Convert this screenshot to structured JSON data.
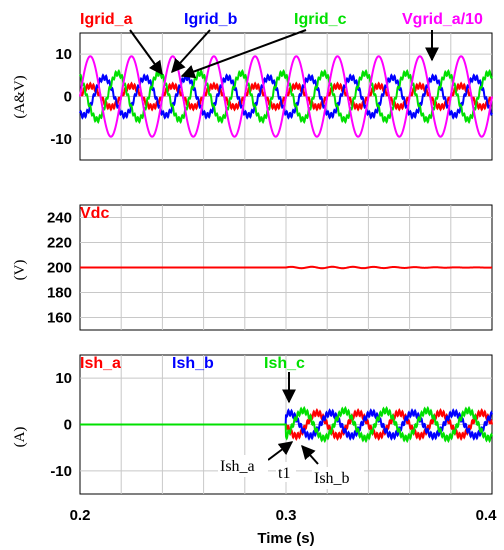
{
  "chart_data": [
    {
      "type": "line",
      "ylabel": "(A&V)",
      "xlim": [
        0.2,
        0.4
      ],
      "ylim": [
        -15,
        15
      ],
      "yticks": [
        10,
        0,
        -10
      ],
      "grid": true,
      "labels": [
        "Igrid_a",
        "Igrid_b",
        "Igrid_c",
        "Vgrid_a/10"
      ],
      "series": [
        {
          "name": "Igrid_a",
          "color": "#ff0000",
          "amplitude": 2.5,
          "frequency_hz": 50,
          "phase_deg": 0
        },
        {
          "name": "Igrid_b",
          "color": "#0000ff",
          "amplitude": 4.5,
          "frequency_hz": 50,
          "phase_deg": -120
        },
        {
          "name": "Igrid_c",
          "color": "#00e000",
          "amplitude": 5.5,
          "frequency_hz": 50,
          "phase_deg": 120
        },
        {
          "name": "Vgrid_a/10",
          "color": "#ff00ff",
          "amplitude": 9.5,
          "frequency_hz": 50,
          "phase_deg": 0
        }
      ]
    },
    {
      "type": "line",
      "ylabel": "(V)",
      "xlim": [
        0.2,
        0.4
      ],
      "ylim": [
        150,
        250
      ],
      "yticks": [
        240,
        220,
        200,
        180,
        160
      ],
      "grid": true,
      "labels": [
        "Vdc"
      ],
      "series": [
        {
          "name": "Vdc",
          "color": "#ff0000",
          "value": 200,
          "ripple_after": 0.3,
          "ripple": 0.6
        }
      ]
    },
    {
      "type": "line",
      "ylabel": "(A)",
      "xlim": [
        0.2,
        0.4
      ],
      "ylim": [
        -15,
        15
      ],
      "yticks": [
        10,
        0,
        -10
      ],
      "grid": true,
      "start_time": 0.3,
      "labels": [
        "Ish_a",
        "Ish_b",
        "Ish_c"
      ],
      "series": [
        {
          "name": "Ish_a",
          "color": "#ff0000",
          "amplitude": 2.5,
          "frequency_hz": 50,
          "phase_deg": 180
        },
        {
          "name": "Ish_b",
          "color": "#0000ff",
          "amplitude": 2.5,
          "frequency_hz": 50,
          "phase_deg": 60
        },
        {
          "name": "Ish_c",
          "color": "#00e000",
          "amplitude": 3.0,
          "frequency_hz": 50,
          "phase_deg": -60
        }
      ],
      "annotations": [
        "Ish_a",
        "t1",
        "Ish_b"
      ]
    }
  ],
  "x_ticks": [
    "0.2",
    "0.3",
    "0.4"
  ],
  "xlabel": "Time (s)"
}
